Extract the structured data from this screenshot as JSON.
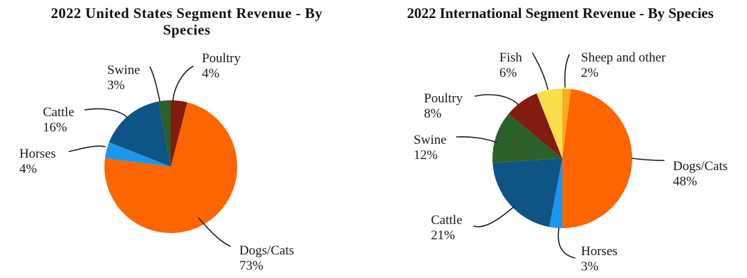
{
  "page": {
    "background": "#FFFFFF",
    "text_color": "#1A1A1A"
  },
  "chart_data": [
    {
      "type": "pie",
      "title": "2022 United States Segment Revenue - By Species",
      "start_angle_deg": 0,
      "direction": "clockwise",
      "legend": "none",
      "label_style": "outside callouts with curved leader lines, format: name + percent",
      "slices": [
        {
          "label": "Poultry",
          "value_pct": 4,
          "pct_text": "4%",
          "color": "#831B11"
        },
        {
          "label": "Dogs/Cats",
          "value_pct": 73,
          "pct_text": "73%",
          "color": "#FC6500"
        },
        {
          "label": "Horses",
          "value_pct": 4,
          "pct_text": "4%",
          "color": "#1E96EC"
        },
        {
          "label": "Cattle",
          "value_pct": 16,
          "pct_text": "16%",
          "color": "#0E5585"
        },
        {
          "label": "Swine",
          "value_pct": 3,
          "pct_text": "3%",
          "color": "#2D5F28"
        }
      ]
    },
    {
      "type": "pie",
      "title": "2022 International Segment Revenue - By Species",
      "start_angle_deg": 0,
      "direction": "clockwise",
      "legend": "none",
      "label_style": "outside callouts with curved leader lines, format: name + percent",
      "slices": [
        {
          "label": "Sheep and other",
          "value_pct": 2,
          "pct_text": "2%",
          "color": "#F9AD1E"
        },
        {
          "label": "Dogs/Cats",
          "value_pct": 48,
          "pct_text": "48%",
          "color": "#FC6500"
        },
        {
          "label": "Horses",
          "value_pct": 3,
          "pct_text": "3%",
          "color": "#1E96EC"
        },
        {
          "label": "Cattle",
          "value_pct": 21,
          "pct_text": "21%",
          "color": "#0E5585"
        },
        {
          "label": "Swine",
          "value_pct": 12,
          "pct_text": "12%",
          "color": "#2D5F28"
        },
        {
          "label": "Poultry",
          "value_pct": 8,
          "pct_text": "8%",
          "color": "#831B11"
        },
        {
          "label": "Fish",
          "value_pct": 6,
          "pct_text": "6%",
          "color": "#FCDF4C"
        }
      ]
    }
  ]
}
